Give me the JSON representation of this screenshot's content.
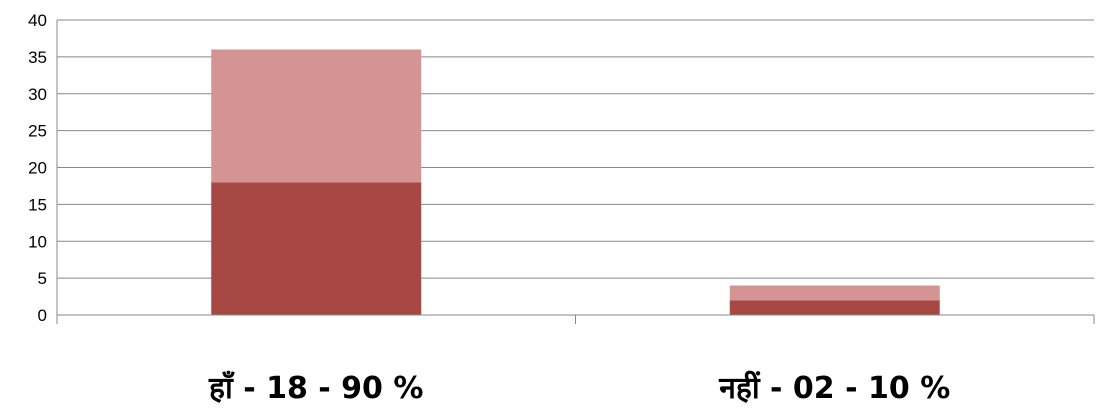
{
  "chart_data": {
    "type": "bar",
    "stacked": true,
    "categories": [
      "हाँ - 18 -  90 %",
      "नहीं - 02  - 10 %"
    ],
    "series": [
      {
        "values": [
          18,
          2
        ]
      },
      {
        "values": [
          18,
          2
        ]
      }
    ],
    "ylim": [
      0,
      40
    ],
    "yticks": [
      "0",
      "5",
      "10",
      "15",
      "20",
      "25",
      "30",
      "35",
      "40"
    ],
    "grid": true,
    "legend": "none",
    "colors": [
      "#A84845",
      "#D39493"
    ],
    "gridColor": "#898989",
    "axisColor": "#898989"
  }
}
